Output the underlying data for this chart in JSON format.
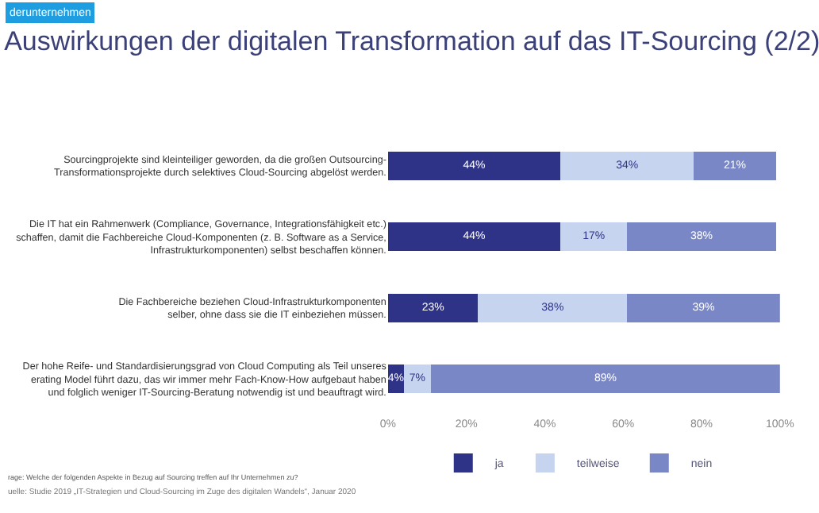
{
  "chart_data": {
    "type": "bar",
    "orientation": "horizontal",
    "stacked": true,
    "title": "Auswirkungen der digitalen Transformation auf das IT-Sourcing (2/2)",
    "categories": [
      "Sourcingprojekte sind kleinteiliger geworden, da die großen Outsourcing-\nTransformationsprojekte durch selektives Cloud-Sourcing abgelöst werden.",
      "Die IT hat ein Rahmenwerk (Compliance, Governance, Integrationsfähigkeit etc.)\nschaffen, damit die Fachbereiche Cloud-Komponenten (z. B. Software as a Service,\nInfrastrukturkomponenten) selbst beschaffen können.",
      "Die Fachbereiche beziehen Cloud-Infrastrukturkomponenten\nselber, ohne dass sie die IT einbeziehen müssen.",
      "Der hohe Reife- und Standardisierungsgrad von Cloud Computing als Teil unseres\nerating Model führt dazu, das wir immer mehr Fach-Know-How aufgebaut haben\nund folglich weniger IT-Sourcing-Beratung notwendig ist und beauftragt wird."
    ],
    "series": [
      {
        "name": "ja",
        "color": "#2e3388",
        "values": [
          44,
          44,
          23,
          4
        ],
        "value_labels": [
          "44%",
          "44%",
          "23%",
          "4%"
        ]
      },
      {
        "name": "teilweise",
        "color": "#c6d4ef",
        "values": [
          34,
          17,
          38,
          7
        ],
        "value_labels": [
          "34%",
          "17%",
          "38%",
          "7%"
        ]
      },
      {
        "name": "nein",
        "color": "#7a87c7",
        "values": [
          21,
          38,
          39,
          89
        ],
        "value_labels": [
          "21%",
          "38%",
          "39%",
          "89%"
        ]
      }
    ],
    "xlim": [
      0,
      100
    ],
    "xticks": [
      {
        "value": 0,
        "label": "0%"
      },
      {
        "value": 20,
        "label": "20%"
      },
      {
        "value": 40,
        "label": "40%"
      },
      {
        "value": 60,
        "label": "60%"
      },
      {
        "value": 80,
        "label": "80%"
      },
      {
        "value": 100,
        "label": "100%"
      }
    ],
    "legend": "bottom",
    "annotations": [
      "derunternehmen",
      "rage: Welche der folgenden Aspekte in Bezug auf Sourcing treffen auf Ihr Unternehmen zu?",
      "uelle: Studie 2019 „IT-Strategien und Cloud-Sourcing im Zuge des digitalen Wandels“, Januar 2020"
    ]
  }
}
